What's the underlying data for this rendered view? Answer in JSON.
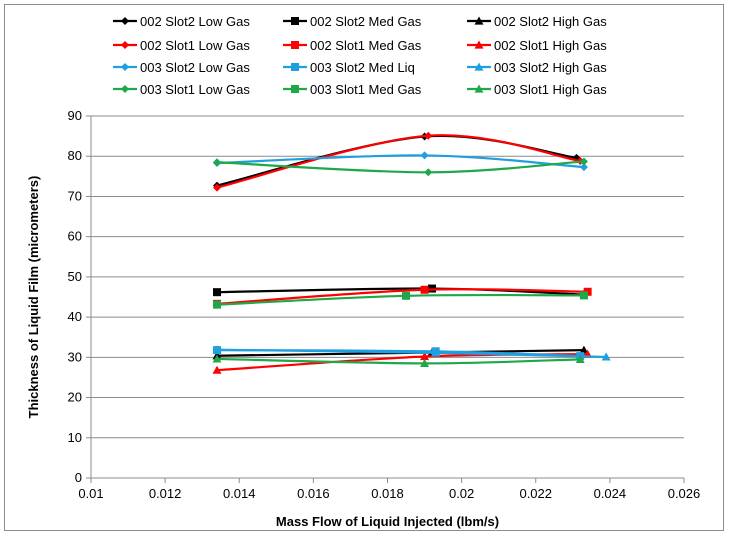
{
  "chart_data": {
    "type": "line",
    "xlabel": "Mass Flow of Liquid Injected (lbm/s)",
    "ylabel": "Thickness of Liquid Film (micrometers)",
    "xlim": [
      0.01,
      0.026
    ],
    "ylim": [
      0,
      90
    ],
    "xticks": [
      "0.01",
      "0.012",
      "0.014",
      "0.016",
      "0.018",
      "0.02",
      "0.022",
      "0.024",
      "0.026"
    ],
    "yticks": [
      "0",
      "10",
      "20",
      "30",
      "40",
      "50",
      "60",
      "70",
      "80",
      "90"
    ],
    "grid": "horizontal",
    "legend_placement": "top",
    "series": [
      {
        "name": "002 Slot2 Low Gas",
        "color": "#000000",
        "marker": "diamond",
        "x": [
          0.0134,
          0.019,
          0.0231
        ],
        "y": [
          72.7,
          84.9,
          79.6
        ]
      },
      {
        "name": "002 Slot2  Med Gas",
        "color": "#000000",
        "marker": "square",
        "x": [
          0.0134,
          0.0192,
          0.0233
        ],
        "y": [
          46.2,
          47.1,
          45.6
        ]
      },
      {
        "name": "002 Slot2 High Gas",
        "color": "#000000",
        "marker": "triangle",
        "x": [
          0.0134,
          0.0192,
          0.0233
        ],
        "y": [
          30.4,
          31.2,
          31.8
        ]
      },
      {
        "name": "002 Slot1 Low Gas",
        "color": "#ff0000",
        "marker": "diamond",
        "x": [
          0.0134,
          0.0191,
          0.0232
        ],
        "y": [
          72.2,
          85.1,
          78.8
        ]
      },
      {
        "name": "002 Slot1 Med Gas",
        "color": "#ff0000",
        "marker": "square",
        "x": [
          0.0134,
          0.019,
          0.0234
        ],
        "y": [
          43.3,
          46.8,
          46.3
        ]
      },
      {
        "name": "002 Slot1 High Gas",
        "color": "#ff0000",
        "marker": "triangle",
        "x": [
          0.0134,
          0.019,
          0.0234
        ],
        "y": [
          26.8,
          30.2,
          30.8
        ]
      },
      {
        "name": "003 Slot2 Low Gas",
        "color": "#1f9fe0",
        "marker": "diamond",
        "x": [
          0.0134,
          0.019,
          0.0233
        ],
        "y": [
          78.3,
          80.2,
          77.3
        ]
      },
      {
        "name": "003 Slot2 Med Liq",
        "color": "#1f9fe0",
        "marker": "square",
        "x": [
          0.0134,
          0.0193,
          0.0232
        ],
        "y": [
          31.8,
          31.5,
          30.3
        ]
      },
      {
        "name": "003 Slot2 High Gas",
        "color": "#1f9fe0",
        "marker": "triangle",
        "x": [
          0.0134,
          0.0193,
          0.0239
        ],
        "y": [
          31.9,
          31.1,
          30.1
        ]
      },
      {
        "name": "003 Slot1 Low Gas",
        "color": "#1fa84a",
        "marker": "diamond",
        "x": [
          0.0134,
          0.0191,
          0.0233
        ],
        "y": [
          78.5,
          76.0,
          78.7
        ]
      },
      {
        "name": "003 Slot1 Med Gas",
        "color": "#1fa84a",
        "marker": "square",
        "x": [
          0.0134,
          0.0185,
          0.0233
        ],
        "y": [
          43.1,
          45.3,
          45.4
        ]
      },
      {
        "name": "003 Slot1 High Gas",
        "color": "#1fa84a",
        "marker": "triangle",
        "x": [
          0.0134,
          0.019,
          0.0232
        ],
        "y": [
          29.6,
          28.5,
          29.5
        ]
      }
    ]
  }
}
